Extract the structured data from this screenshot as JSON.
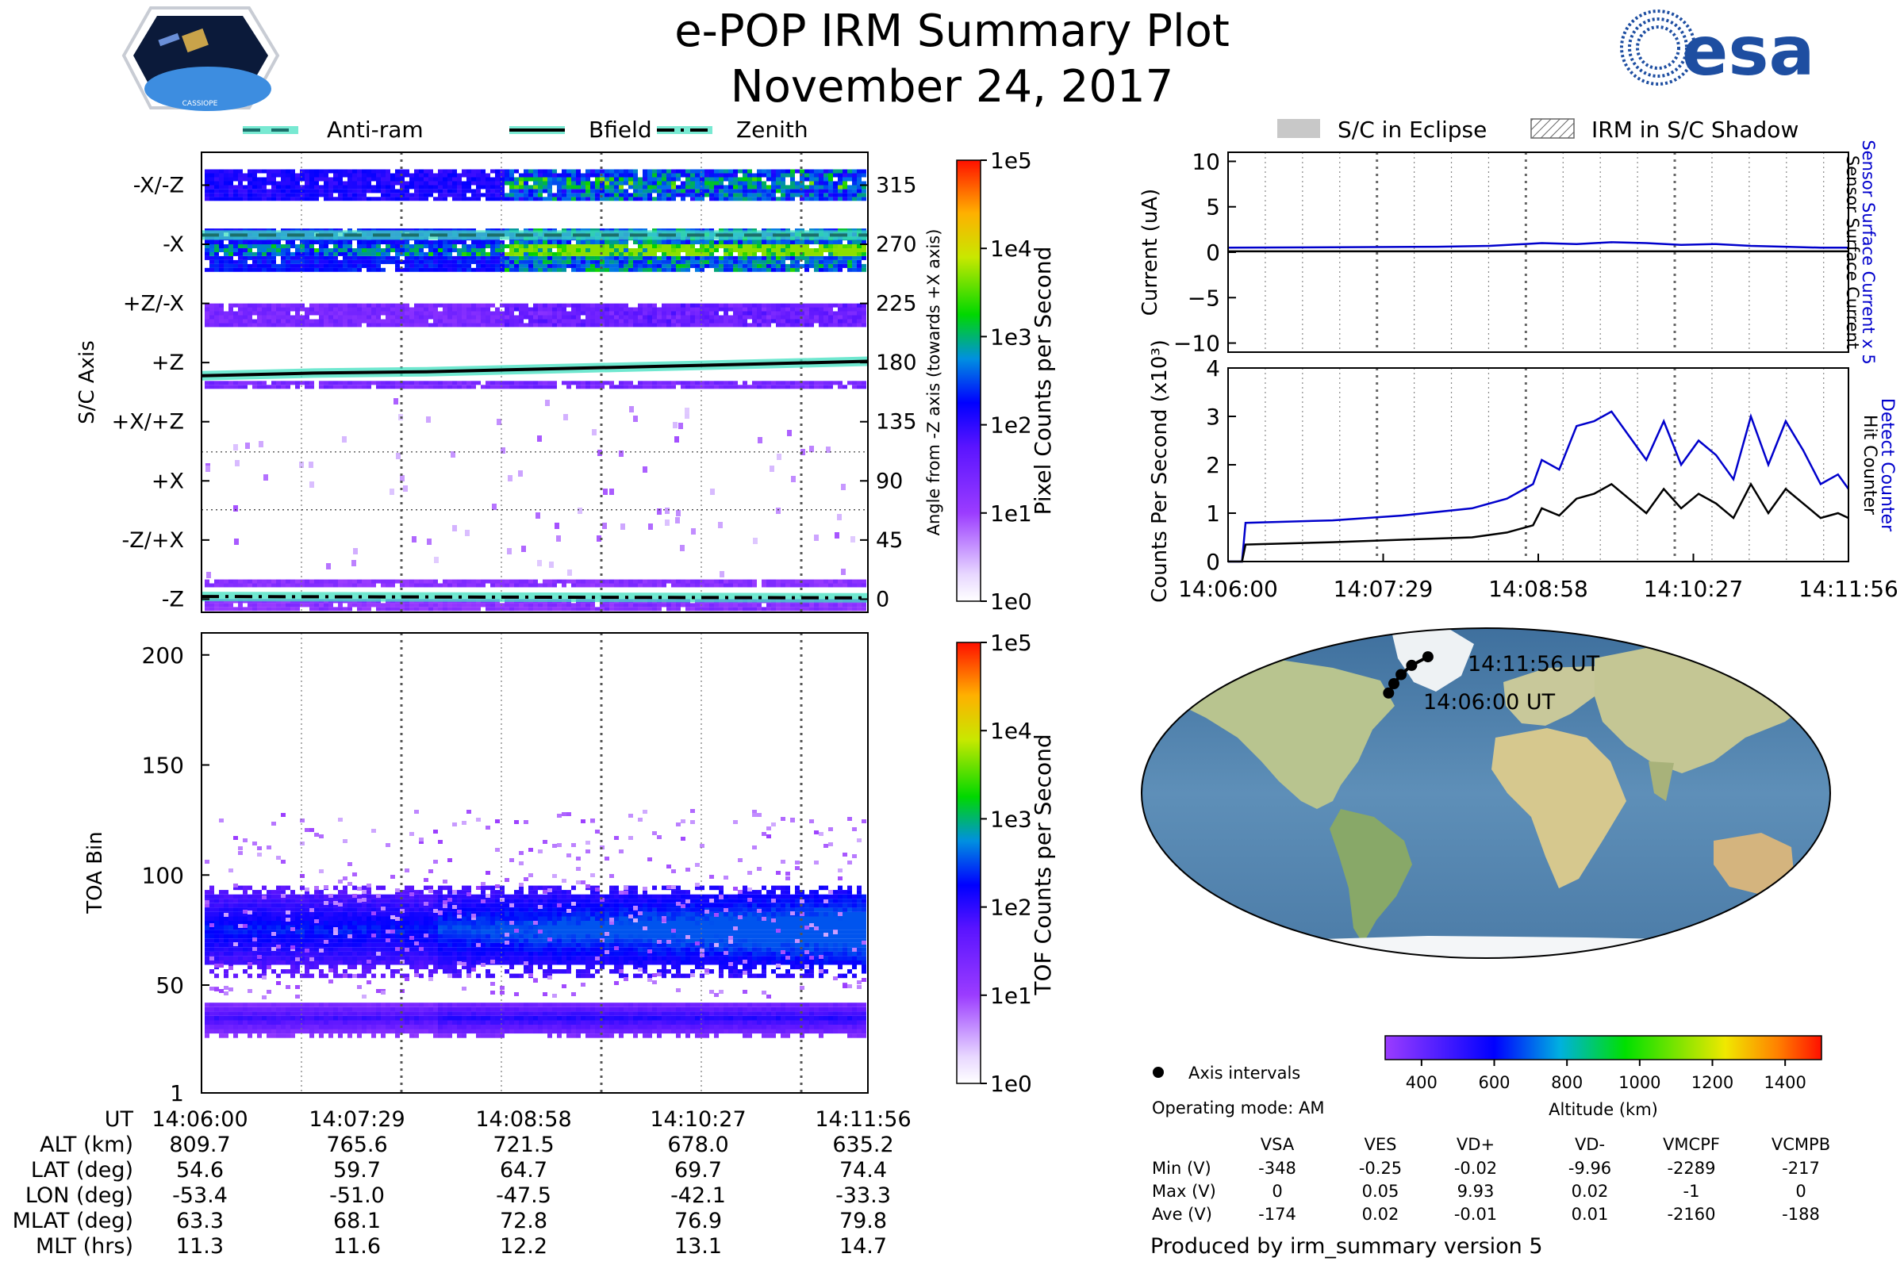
{
  "header": {
    "title": "e-POP IRM Summary Plot",
    "date": "November 24, 2017",
    "cassiope_badge": "CASSIOPE",
    "esa_logo": "esa"
  },
  "colors": {
    "anti_ram": "#1b6f6a",
    "bfield": "#000000",
    "glow": "#40e0c0",
    "current": "#0000cc",
    "hit": "#000000",
    "detect": "#0000cc",
    "track": "#000000"
  },
  "chart_data": [
    {
      "id": "sc-axis-panel",
      "type": "heatmap",
      "ylabel": "S/C Axis",
      "right_ylabel": "Angle from -Z axis (towards +X axis)",
      "legend": [
        {
          "name": "Anti-ram",
          "style": "dashed"
        },
        {
          "name": "Bfield",
          "style": "solid"
        },
        {
          "name": "Zenith",
          "style": "dashdot"
        }
      ],
      "y_range": [
        -10,
        340
      ],
      "axis_labels": [
        {
          "label": "-X/-Z",
          "angle": 315
        },
        {
          "label": "-X",
          "angle": 270
        },
        {
          "label": "+Z/-X",
          "angle": 225
        },
        {
          "label": "+Z",
          "angle": 180
        },
        {
          "label": "+X/+Z",
          "angle": 135
        },
        {
          "label": "+X",
          "angle": 90
        },
        {
          "label": "-Z/+X",
          "angle": 45
        },
        {
          "label": "-Z",
          "angle": 0
        }
      ],
      "angle_ticks": [
        "315",
        "270",
        "225",
        "180",
        "135",
        "90",
        "45",
        "0"
      ],
      "series": [
        {
          "name": "Anti-ram",
          "t": [
            0,
            356
          ],
          "values": [
            277,
            277
          ]
        },
        {
          "name": "Bfield",
          "t": [
            0,
            60,
            120,
            180,
            240,
            300,
            356
          ],
          "values": [
            170,
            172,
            173,
            175,
            177,
            179,
            181
          ]
        },
        {
          "name": "Zenith",
          "t": [
            0,
            356
          ],
          "values": [
            2,
            1
          ]
        }
      ],
      "colorbar": {
        "label": "Pixel Counts per Second",
        "ticks": [
          "1e5",
          "1e4",
          "1e3",
          "1e2",
          "1e1",
          "1e0"
        ]
      }
    },
    {
      "id": "toa-panel",
      "type": "heatmap",
      "ylabel": "TOA Bin",
      "yticks": [
        "200",
        "150",
        "100",
        "50",
        "1"
      ],
      "ylim": [
        1,
        210
      ],
      "bands": [
        {
          "center": 74,
          "halfwidth": 13
        },
        {
          "center": 34,
          "halfwidth": 5
        }
      ],
      "colorbar": {
        "label": "TOF Counts per Second",
        "ticks": [
          "1e5",
          "1e4",
          "1e3",
          "1e2",
          "1e1",
          "1e0"
        ]
      }
    },
    {
      "id": "current-panel",
      "type": "line",
      "ylabel": "Current (uA)",
      "right_labels": [
        "Sensor Surface Current x 5",
        "Sensor Surface Current"
      ],
      "ylim": [
        -11,
        11
      ],
      "yticks": [
        "10",
        "5",
        "0",
        "−5",
        "−10"
      ],
      "legend": [
        {
          "name": "S/C in Eclipse"
        },
        {
          "name": "IRM in S/C Shadow"
        }
      ],
      "series": [
        {
          "name": "Sensor Surface Current x 5",
          "t": [
            0,
            60,
            120,
            150,
            170,
            180,
            200,
            220,
            240,
            260,
            280,
            300,
            320,
            340,
            356
          ],
          "values": [
            0.5,
            0.55,
            0.6,
            0.7,
            0.9,
            1.0,
            0.9,
            1.1,
            1.0,
            0.8,
            0.9,
            0.7,
            0.6,
            0.5,
            0.5
          ]
        },
        {
          "name": "Sensor Surface Current",
          "t": [
            0,
            356
          ],
          "values": [
            0.1,
            0.1
          ]
        }
      ]
    },
    {
      "id": "counts-panel",
      "type": "line",
      "ylabel": "Counts Per Second (x10³)",
      "right_labels": [
        "Detect Counter",
        "Hit Counter"
      ],
      "ylim": [
        0,
        4
      ],
      "yticks": [
        "4",
        "3",
        "2",
        "1",
        "0"
      ],
      "xticks": [
        "14:06:00",
        "14:07:29",
        "14:08:58",
        "14:10:27",
        "14:11:56"
      ],
      "series": [
        {
          "name": "Detect Counter",
          "t": [
            0,
            8,
            10,
            60,
            100,
            140,
            160,
            175,
            180,
            190,
            200,
            210,
            220,
            230,
            240,
            250,
            260,
            270,
            280,
            290,
            300,
            310,
            320,
            330,
            340,
            350,
            356
          ],
          "values": [
            0,
            0,
            0.8,
            0.85,
            0.95,
            1.1,
            1.3,
            1.6,
            2.1,
            1.9,
            2.8,
            2.9,
            3.1,
            2.6,
            2.1,
            2.9,
            2.0,
            2.5,
            2.2,
            1.7,
            3.0,
            2.0,
            2.9,
            2.3,
            1.6,
            1.8,
            1.5
          ]
        },
        {
          "name": "Hit Counter",
          "t": [
            0,
            8,
            10,
            60,
            100,
            140,
            160,
            175,
            180,
            190,
            200,
            210,
            220,
            230,
            240,
            250,
            260,
            270,
            280,
            290,
            300,
            310,
            320,
            330,
            340,
            350,
            356
          ],
          "values": [
            0,
            0,
            0.35,
            0.4,
            0.45,
            0.5,
            0.6,
            0.75,
            1.1,
            0.95,
            1.3,
            1.4,
            1.6,
            1.3,
            1.0,
            1.5,
            1.1,
            1.4,
            1.2,
            0.9,
            1.6,
            1.0,
            1.5,
            1.2,
            0.9,
            1.0,
            0.9
          ]
        }
      ]
    },
    {
      "id": "map-panel",
      "type": "scatter",
      "track": [
        {
          "lon": -53.4,
          "lat": 54.6
        },
        {
          "lon": -51.0,
          "lat": 59.7
        },
        {
          "lon": -47.5,
          "lat": 64.7
        },
        {
          "lon": -42.1,
          "lat": 69.7
        },
        {
          "lon": -33.3,
          "lat": 74.4
        }
      ],
      "start_label": "14:06:00 UT",
      "end_label": "14:11:56 UT",
      "axis_intervals_label": "Axis intervals",
      "operating_mode": "Operating mode: AM",
      "altitude_colorbar": {
        "label": "Altitude (km)",
        "ticks": [
          "400",
          "600",
          "800",
          "1000",
          "1200",
          "1400"
        ],
        "range": [
          300,
          1500
        ]
      }
    }
  ],
  "ut_table": {
    "row_labels": [
      "UT",
      "ALT (km)",
      "LAT (deg)",
      "LON (deg)",
      "MLAT (deg)",
      "MLT (hrs)"
    ],
    "columns": [
      [
        "14:06:00",
        "809.7",
        "54.6",
        "-53.4",
        "63.3",
        "11.3"
      ],
      [
        "14:07:29",
        "765.6",
        "59.7",
        "-51.0",
        "68.1",
        "11.6"
      ],
      [
        "14:08:58",
        "721.5",
        "64.7",
        "-47.5",
        "72.8",
        "12.2"
      ],
      [
        "14:10:27",
        "678.0",
        "69.7",
        "-42.1",
        "76.9",
        "13.1"
      ],
      [
        "14:11:56",
        "635.2",
        "74.4",
        "-33.3",
        "79.8",
        "14.7"
      ]
    ]
  },
  "voltage_table": {
    "headers": [
      "VSA",
      "VES",
      "VD+",
      "VD-",
      "VMCPF",
      "VCMPB"
    ],
    "rows": [
      {
        "label": "Min (V)",
        "values": [
          "-348",
          "-0.25",
          "-0.02",
          "-9.96",
          "-2289",
          "-217"
        ]
      },
      {
        "label": "Max (V)",
        "values": [
          "0",
          "0.05",
          "9.93",
          "0.02",
          "-1",
          "0"
        ]
      },
      {
        "label": "Ave (V)",
        "values": [
          "-174",
          "0.02",
          "-0.01",
          "0.01",
          "-2160",
          "-188"
        ]
      }
    ]
  },
  "footer": "Produced by irm_summary version 5"
}
